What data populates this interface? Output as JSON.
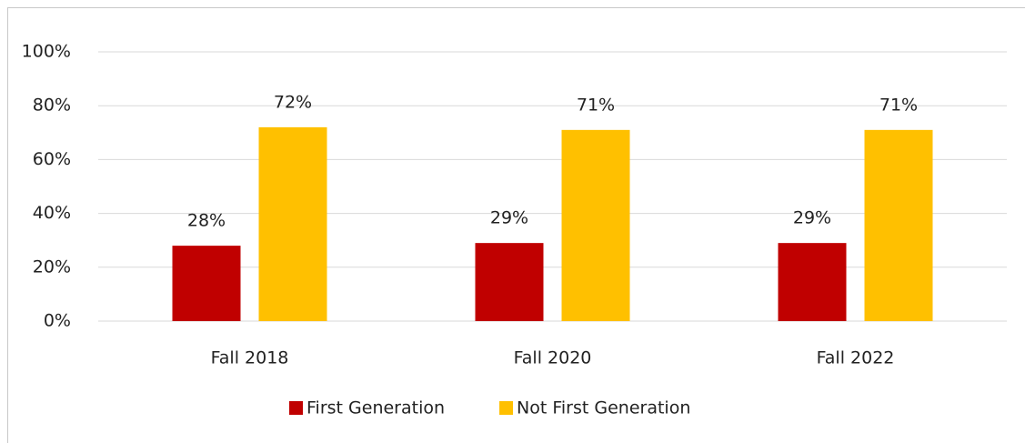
{
  "chart_data": {
    "type": "bar",
    "categories": [
      "Fall 2018",
      "Fall 2020",
      "Fall 2022"
    ],
    "series": [
      {
        "name": "First Generation",
        "color": "#c00000",
        "values": [
          28,
          29,
          29
        ],
        "value_labels": [
          "28%",
          "29%",
          "29%"
        ]
      },
      {
        "name": "Not First Generation",
        "color": "#ffc000",
        "values": [
          72,
          71,
          71
        ],
        "value_labels": [
          "72%",
          "71%",
          "71%"
        ]
      }
    ],
    "ylim": [
      0,
      100
    ],
    "yticks": [
      {
        "value": 0,
        "label": "0%"
      },
      {
        "value": 20,
        "label": "20%"
      },
      {
        "value": 40,
        "label": "40%"
      },
      {
        "value": 60,
        "label": "60%"
      },
      {
        "value": 80,
        "label": "80%"
      },
      {
        "value": 100,
        "label": "100%"
      }
    ],
    "grid": true,
    "legend": "bottom"
  }
}
